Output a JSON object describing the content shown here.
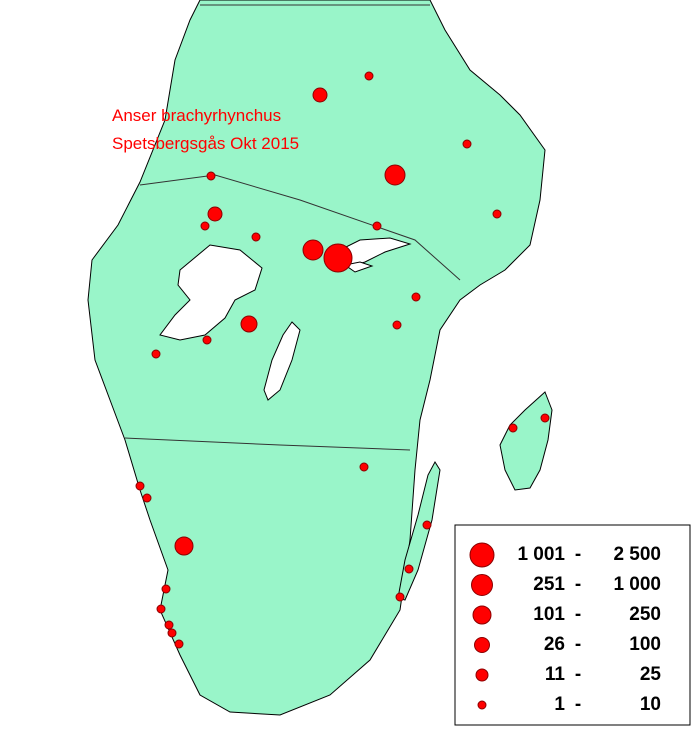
{
  "map": {
    "title": [
      "Anser brachyrhynchus",
      "Spetsbergsgås Okt 2015"
    ],
    "legend": {
      "separator": "-",
      "items": [
        {
          "from": "1 001",
          "to": "2 500"
        },
        {
          "from": "251",
          "to": "1 000"
        },
        {
          "from": "101",
          "to": "250"
        },
        {
          "from": "26",
          "to": "100"
        },
        {
          "from": "11",
          "to": "25"
        },
        {
          "from": "1",
          "to": "10"
        }
      ]
    }
  }
}
